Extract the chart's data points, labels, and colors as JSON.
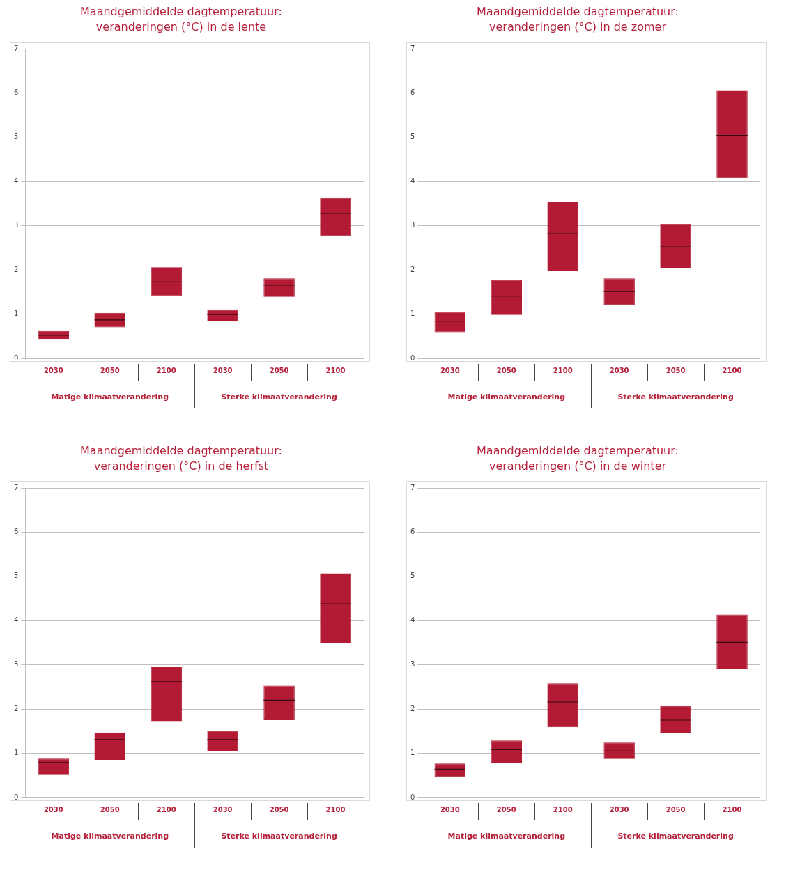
{
  "chart_data": [
    {
      "type": "box",
      "title": "Maandgemiddelde dagtemperatuur:\nveranderingen (°C) in de lente",
      "categories": [
        "2030",
        "2050",
        "2100",
        "2030",
        "2050",
        "2100"
      ],
      "color": "#b31b34",
      "ylim": [
        0,
        7
      ],
      "yticks": [
        0,
        1,
        2,
        3,
        4,
        5,
        6,
        7
      ],
      "grid": "y",
      "annotations": [
        "Matige klimaatverandering",
        "Sterke klimaatverandering"
      ],
      "boxes": [
        {
          "low": 0.42,
          "q1": 0.42,
          "median": 0.52,
          "q3": 0.62,
          "high": 0.62
        },
        {
          "low": 0.7,
          "q1": 0.7,
          "median": 0.87,
          "q3": 1.03,
          "high": 1.03
        },
        {
          "low": 1.41,
          "q1": 1.41,
          "median": 1.73,
          "q3": 2.06,
          "high": 2.06
        },
        {
          "low": 0.83,
          "q1": 0.83,
          "median": 0.99,
          "q3": 1.09,
          "high": 1.09
        },
        {
          "low": 1.39,
          "q1": 1.39,
          "median": 1.64,
          "q3": 1.81,
          "high": 1.81
        },
        {
          "low": 2.77,
          "q1": 2.77,
          "median": 3.28,
          "q3": 3.63,
          "high": 3.63
        }
      ]
    },
    {
      "type": "box",
      "title": "Maandgemiddelde dagtemperatuur:\nveranderingen (°C) in de zomer",
      "categories": [
        "2030",
        "2050",
        "2100",
        "2030",
        "2050",
        "2100"
      ],
      "color": "#b31b34",
      "ylim": [
        0,
        7
      ],
      "yticks": [
        0,
        1,
        2,
        3,
        4,
        5,
        6,
        7
      ],
      "grid": "y",
      "annotations": [
        "Matige klimaatverandering",
        "Sterke klimaatverandering"
      ],
      "boxes": [
        {
          "low": 0.59,
          "q1": 0.59,
          "median": 0.84,
          "q3": 1.05,
          "high": 1.05
        },
        {
          "low": 0.98,
          "q1": 0.98,
          "median": 1.41,
          "q3": 1.77,
          "high": 1.77
        },
        {
          "low": 1.97,
          "q1": 1.97,
          "median": 2.82,
          "q3": 3.53,
          "high": 3.53
        },
        {
          "low": 1.21,
          "q1": 1.21,
          "median": 1.51,
          "q3": 1.81,
          "high": 1.81
        },
        {
          "low": 2.03,
          "q1": 2.03,
          "median": 2.52,
          "q3": 3.03,
          "high": 3.03
        },
        {
          "low": 4.07,
          "q1": 4.07,
          "median": 5.04,
          "q3": 6.06,
          "high": 6.06
        }
      ]
    },
    {
      "type": "box",
      "title": "Maandgemiddelde dagtemperatuur:\nveranderingen (°C) in de herfst",
      "categories": [
        "2030",
        "2050",
        "2100",
        "2030",
        "2050",
        "2100"
      ],
      "color": "#b31b34",
      "ylim": [
        0,
        7
      ],
      "yticks": [
        0,
        1,
        2,
        3,
        4,
        5,
        6,
        7
      ],
      "grid": "y",
      "annotations": [
        "Matige klimaatverandering",
        "Sterke klimaatverandering"
      ],
      "boxes": [
        {
          "low": 0.51,
          "q1": 0.51,
          "median": 0.79,
          "q3": 0.88,
          "high": 0.88
        },
        {
          "low": 0.85,
          "q1": 0.85,
          "median": 1.31,
          "q3": 1.47,
          "high": 1.47
        },
        {
          "low": 1.71,
          "q1": 1.71,
          "median": 2.62,
          "q3": 2.95,
          "high": 2.95
        },
        {
          "low": 1.04,
          "q1": 1.04,
          "median": 1.31,
          "q3": 1.51,
          "high": 1.51
        },
        {
          "low": 1.75,
          "q1": 1.75,
          "median": 2.2,
          "q3": 2.53,
          "high": 2.53
        },
        {
          "low": 3.5,
          "q1": 3.5,
          "median": 4.38,
          "q3": 5.07,
          "high": 5.07
        }
      ]
    },
    {
      "type": "box",
      "title": "Maandgemiddelde dagtemperatuur:\nveranderingen (°C) in de winter",
      "categories": [
        "2030",
        "2050",
        "2100",
        "2030",
        "2050",
        "2100"
      ],
      "color": "#b31b34",
      "ylim": [
        0,
        7
      ],
      "yticks": [
        0,
        1,
        2,
        3,
        4,
        5,
        6,
        7
      ],
      "grid": "y",
      "annotations": [
        "Matige klimaatverandering",
        "Sterke klimaatverandering"
      ],
      "boxes": [
        {
          "low": 0.47,
          "q1": 0.47,
          "median": 0.64,
          "q3": 0.77,
          "high": 0.77
        },
        {
          "low": 0.79,
          "q1": 0.79,
          "median": 1.08,
          "q3": 1.29,
          "high": 1.29
        },
        {
          "low": 1.59,
          "q1": 1.59,
          "median": 2.16,
          "q3": 2.58,
          "high": 2.58
        },
        {
          "low": 0.87,
          "q1": 0.87,
          "median": 1.05,
          "q3": 1.24,
          "high": 1.24
        },
        {
          "low": 1.45,
          "q1": 1.45,
          "median": 1.75,
          "q3": 2.07,
          "high": 2.07
        },
        {
          "low": 2.9,
          "q1": 2.9,
          "median": 3.51,
          "q3": 4.14,
          "high": 4.14
        }
      ]
    }
  ]
}
